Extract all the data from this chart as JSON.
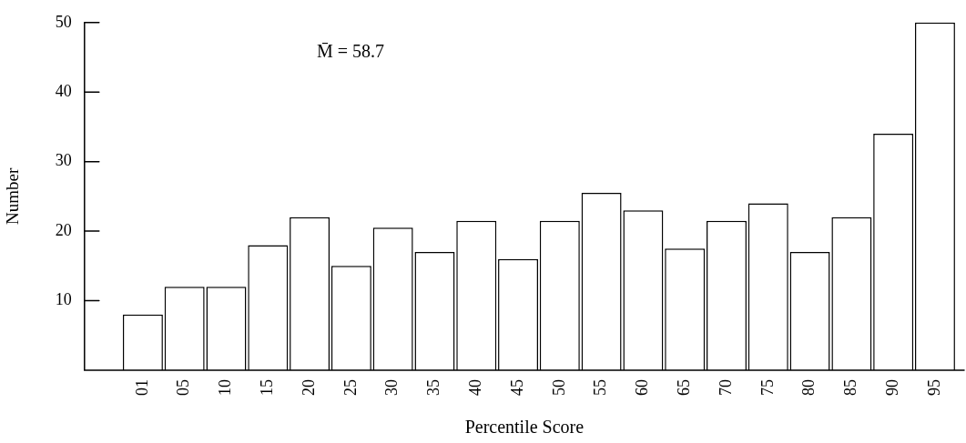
{
  "chart_data": {
    "type": "bar",
    "xlabel": "Percentile Score",
    "ylabel": "Number",
    "annotations": [
      "M̄ = 58.7"
    ],
    "categories": [
      "01",
      "05",
      "10",
      "15",
      "20",
      "25",
      "30",
      "35",
      "40",
      "45",
      "50",
      "55",
      "60",
      "65",
      "70",
      "75",
      "80",
      "85",
      "90",
      "95"
    ],
    "values": [
      8,
      12,
      12,
      18,
      22,
      15,
      20.5,
      17,
      21.5,
      16,
      21.5,
      25.5,
      23,
      17.5,
      21.5,
      24,
      17,
      22,
      34,
      50
    ],
    "color": "#ffffff",
    "ylim": [
      0,
      50
    ],
    "yticks": [
      10,
      20,
      30,
      40,
      50
    ],
    "grid": false,
    "legend": false
  }
}
